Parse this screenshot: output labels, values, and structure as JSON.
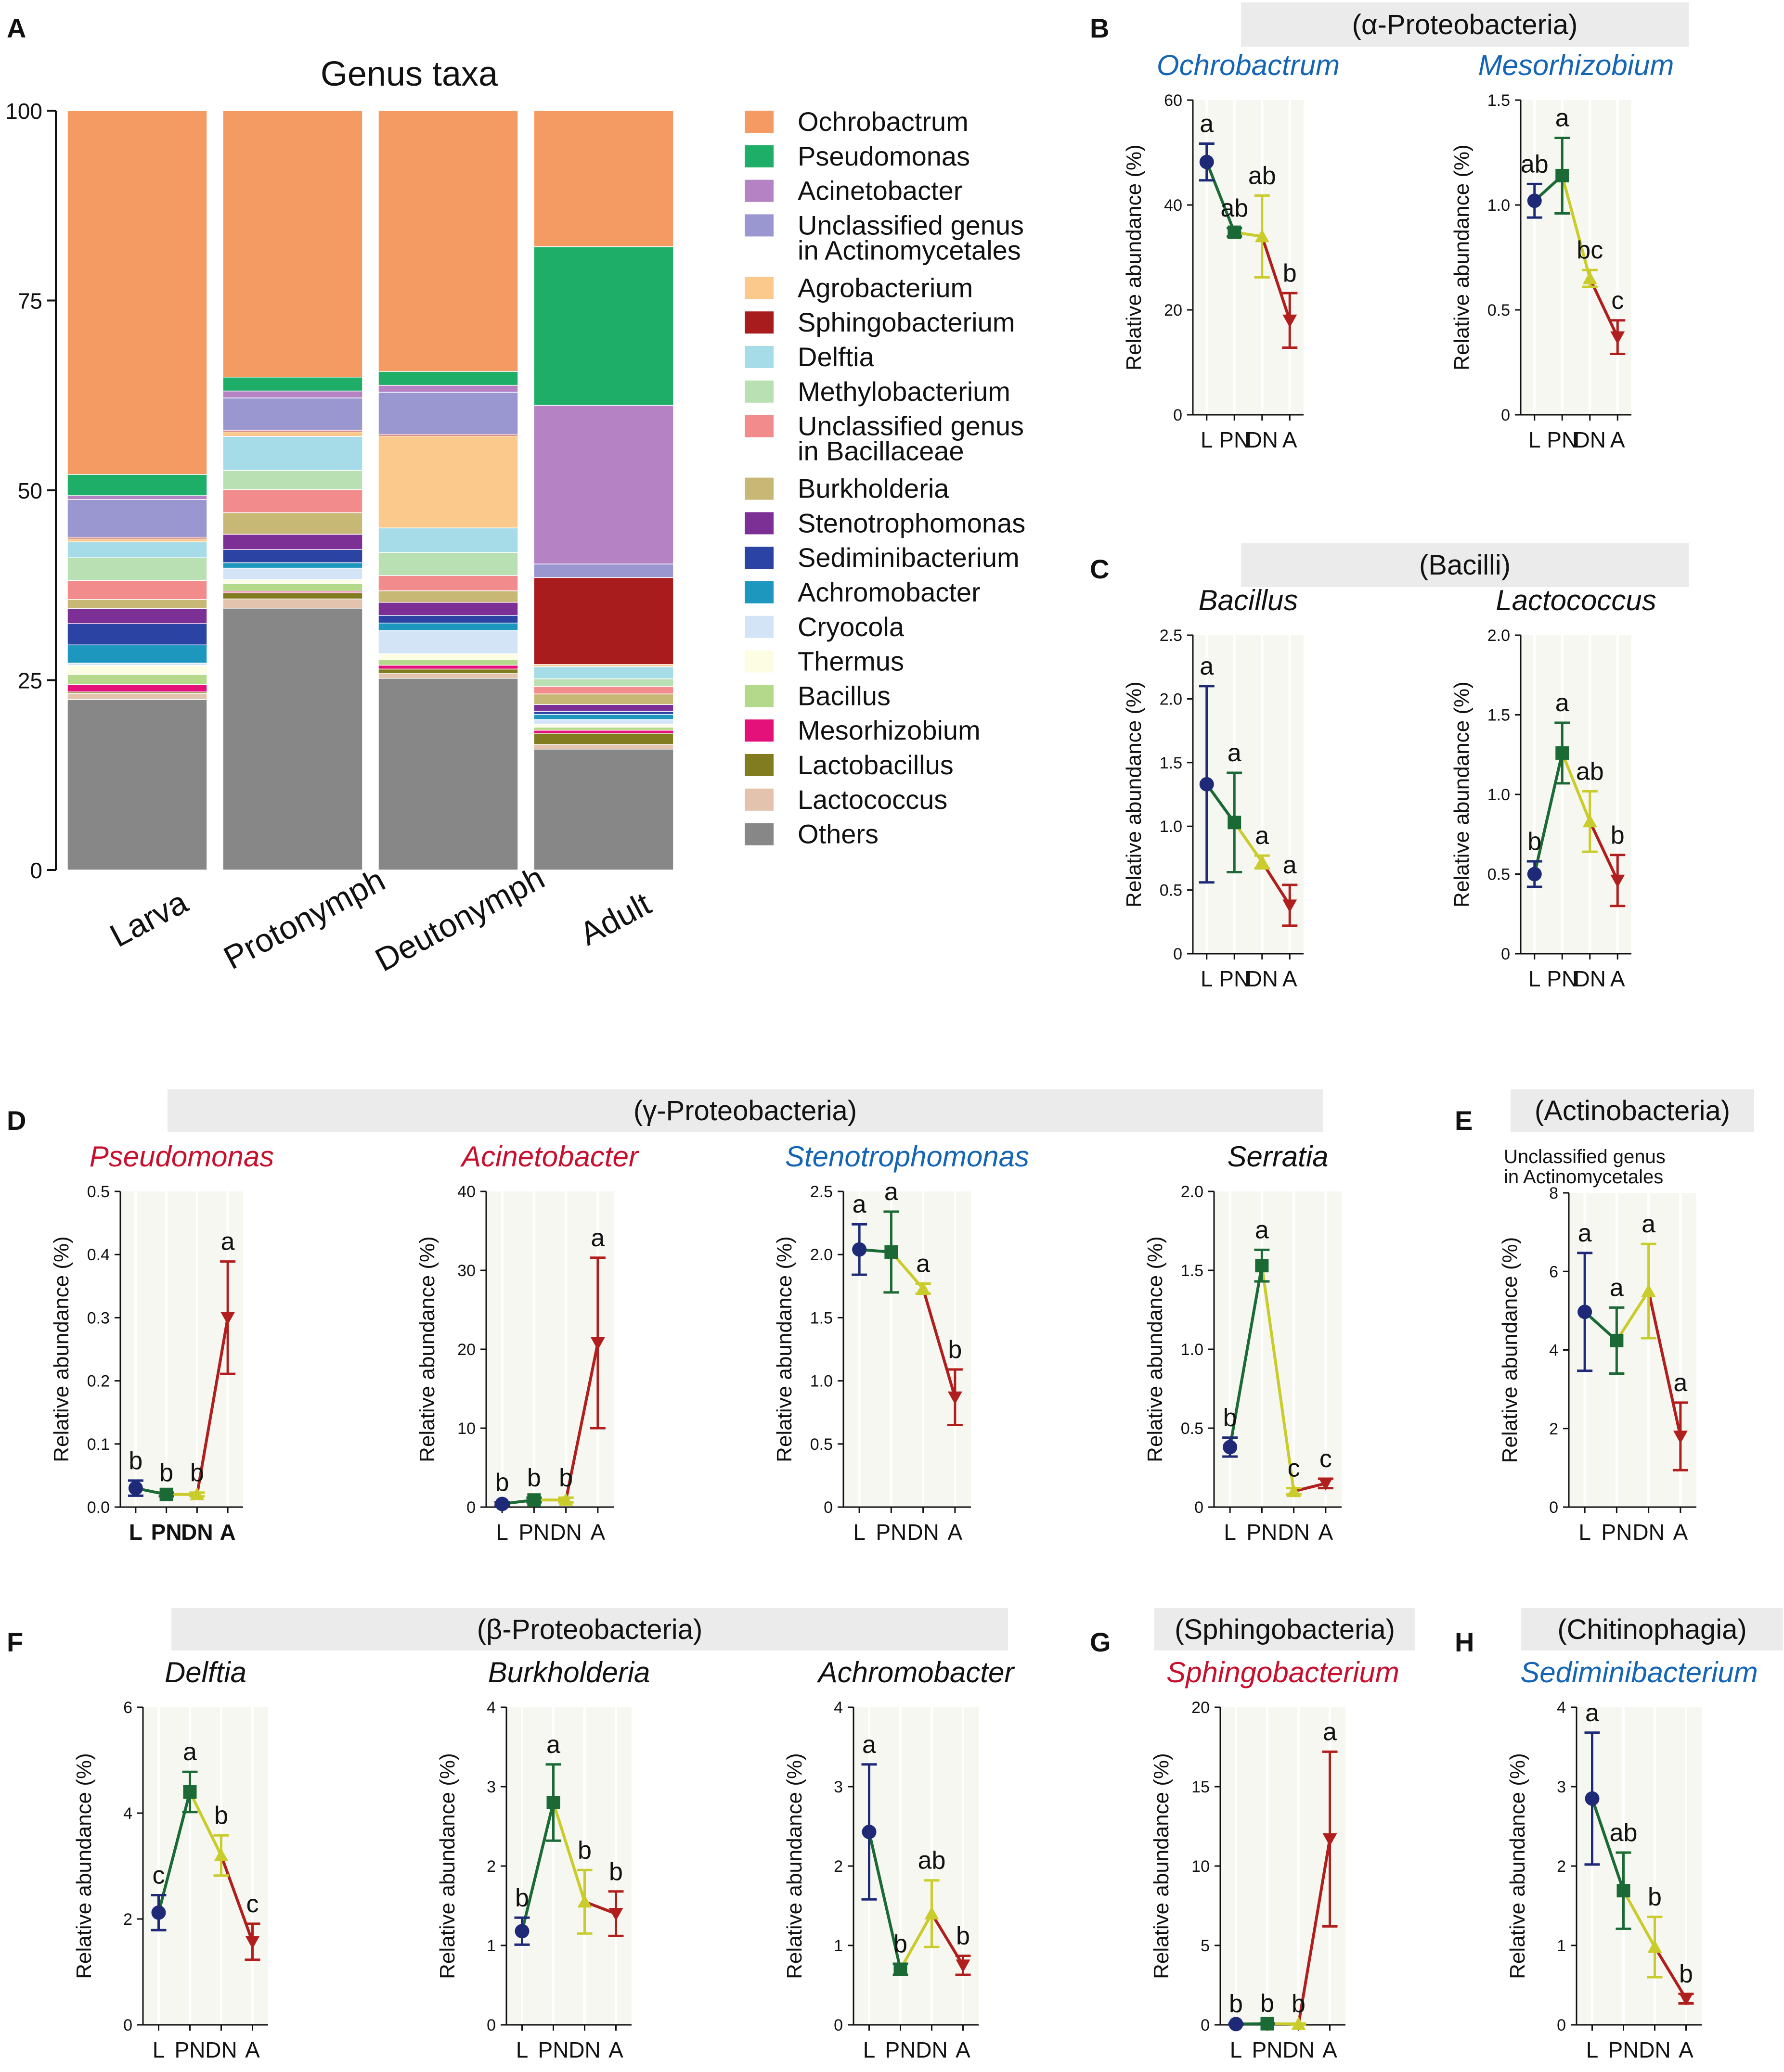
{
  "chart_data": [
    {
      "panel": "A",
      "type": "bar",
      "title": "Genus taxa",
      "categories": [
        "Larva",
        "Protonymph",
        "Deutonymph",
        "Adult"
      ],
      "ylim": [
        0,
        100
      ],
      "yticks": [
        "0",
        "25",
        "50",
        "75",
        "100"
      ],
      "series": [
        {
          "name": "Others",
          "color": "#878787",
          "values": [
            22.5,
            34.0,
            25.0,
            16.0
          ]
        },
        {
          "name": "Lactococcus",
          "color": "#e3c3ad",
          "values": [
            0.8,
            1.2,
            0.6,
            0.6
          ]
        },
        {
          "name": "Lactobacillus",
          "color": "#827c21",
          "values": [
            0.2,
            0.8,
            0.6,
            1.5
          ]
        },
        {
          "name": "Mesorhizobium",
          "color": "#e4117b",
          "values": [
            1.0,
            0.2,
            0.5,
            0.4
          ]
        },
        {
          "name": "Bacillus",
          "color": "#b4d98b",
          "values": [
            1.3,
            1.0,
            0.7,
            0.4
          ]
        },
        {
          "name": "Thermus",
          "color": "#fdfde4",
          "values": [
            1.2,
            0.5,
            0.8,
            0.4
          ]
        },
        {
          "name": "Cryocola",
          "color": "#d4e4f7",
          "values": [
            0.3,
            1.5,
            3.0,
            0.6
          ]
        },
        {
          "name": "Achromobacter",
          "color": "#1e97bf",
          "values": [
            2.4,
            0.7,
            1.0,
            0.7
          ]
        },
        {
          "name": "Sediminibacterium",
          "color": "#2b43a3",
          "values": [
            2.8,
            1.7,
            1.0,
            0.4
          ]
        },
        {
          "name": "Stenotrophomonas",
          "color": "#7c2f95",
          "values": [
            2.0,
            2.0,
            1.7,
            0.9
          ]
        },
        {
          "name": "Burkholderia",
          "color": "#c8b876",
          "values": [
            1.2,
            2.8,
            1.5,
            1.4
          ]
        },
        {
          "name": "Unclassified genus in Bacillaceae",
          "color": "#f28b8b",
          "values": [
            2.5,
            3.0,
            2.0,
            1.0
          ]
        },
        {
          "name": "Methylobacterium",
          "color": "#b9e0b2",
          "values": [
            3.0,
            2.5,
            3.0,
            1.0
          ]
        },
        {
          "name": "Delftia",
          "color": "#a6dbe8",
          "values": [
            2.1,
            4.4,
            3.2,
            1.6
          ]
        },
        {
          "name": "Agrobacterium",
          "color": "#fbc98c",
          "values": [
            0.4,
            0.6,
            12.0,
            0.3
          ]
        },
        {
          "name": "Sphingobacterium",
          "color": "#a81c1e",
          "values": [
            0.2,
            0.2,
            0.2,
            11.5
          ]
        },
        {
          "name": "Unclassified genus in Actinomycetales",
          "color": "#9a96cf",
          "values": [
            5.0,
            4.2,
            5.5,
            1.8
          ]
        },
        {
          "name": "Acinetobacter",
          "color": "#b582c4",
          "values": [
            0.5,
            0.9,
            0.9,
            21.0
          ]
        },
        {
          "name": "Pseudomonas",
          "color": "#1fae68",
          "values": [
            2.8,
            1.8,
            1.8,
            21.0
          ]
        },
        {
          "name": "Ochrobactrum",
          "color": "#f49b63",
          "values": [
            48.0,
            34.6,
            34.0,
            18.0
          ]
        }
      ],
      "legend": [
        "Ochrobactrum",
        "Pseudomonas",
        "Acinetobacter",
        "Unclassified genus|in Actinomycetales",
        "Agrobacterium",
        "Sphingobacterium",
        "Delftia",
        "Methylobacterium",
        "Unclassified genus|in Bacillaceae",
        "Burkholderia",
        "Stenotrophomonas",
        "Sediminibacterium",
        "Achromobacter",
        "Cryocola",
        "Thermus",
        "Bacillus",
        "Mesorhizobium",
        "Lactobacillus",
        "Lactococcus",
        "Others"
      ]
    },
    {
      "panel": "B",
      "type": "line",
      "title": "Ochrobactrum",
      "title_color": "#1565b6",
      "ylabel": "Relative abundance (%)",
      "categories": [
        "L",
        "PN",
        "DN",
        "A"
      ],
      "ylim": [
        0,
        60
      ],
      "yticks": [
        "0",
        "20",
        "40",
        "60"
      ],
      "values": [
        48.2,
        34.8,
        34.0,
        18.0
      ],
      "err": [
        3.5,
        0.8,
        7.8,
        5.2
      ],
      "letters": [
        "a",
        "ab",
        "ab",
        "b"
      ]
    },
    {
      "panel": "B",
      "type": "line",
      "title": "Mesorhizobium",
      "title_color": "#1565b6",
      "ylabel": "Relative abundance (%)",
      "categories": [
        "L",
        "PN",
        "DN",
        "A"
      ],
      "ylim": [
        0,
        1.5
      ],
      "yticks": [
        "0",
        "0.5",
        "1.0",
        "1.5"
      ],
      "values": [
        1.02,
        1.14,
        0.65,
        0.37
      ],
      "err": [
        0.08,
        0.18,
        0.04,
        0.08
      ],
      "letters": [
        "ab",
        "a",
        "bc",
        "c"
      ]
    },
    {
      "panel": "C",
      "type": "line",
      "title": "Bacillus",
      "title_color": "#111111",
      "ylabel": "Relative abundance (%)",
      "categories": [
        "L",
        "PN",
        "DN",
        "A"
      ],
      "ylim": [
        0,
        2.5
      ],
      "yticks": [
        "0",
        "0.5",
        "1.0",
        "1.5",
        "2.0",
        "2.5"
      ],
      "values": [
        1.33,
        1.03,
        0.72,
        0.38
      ],
      "err": [
        0.77,
        0.39,
        0.05,
        0.16
      ],
      "letters": [
        "a",
        "a",
        "a",
        "a"
      ]
    },
    {
      "panel": "C",
      "type": "line",
      "title": "Lactococcus",
      "title_color": "#111111",
      "ylabel": "Relative abundance (%)",
      "categories": [
        "L",
        "PN",
        "DN",
        "A"
      ],
      "ylim": [
        0,
        2.0
      ],
      "yticks": [
        "0",
        "0.5",
        "1.0",
        "1.5",
        "2.0"
      ],
      "values": [
        0.5,
        1.26,
        0.83,
        0.46
      ],
      "err": [
        0.08,
        0.19,
        0.19,
        0.16
      ],
      "letters": [
        "b",
        "a",
        "ab",
        "b"
      ]
    },
    {
      "panel": "D",
      "type": "line",
      "title": "Pseudomonas",
      "title_color": "#c8102e",
      "ylabel": "Relative abundance (%)",
      "categories": [
        "L",
        "PN",
        "DN",
        "A"
      ],
      "bold_ticks": true,
      "ylim": [
        0,
        0.5
      ],
      "yticks": [
        "0.0",
        "0.1",
        "0.2",
        "0.3",
        "0.4",
        "0.5"
      ],
      "values": [
        0.03,
        0.02,
        0.02,
        0.3
      ],
      "err": [
        0.012,
        0.003,
        0.003,
        0.089
      ],
      "letters": [
        "b",
        "b",
        "b",
        "a"
      ]
    },
    {
      "panel": "D",
      "type": "line",
      "title": "Acinetobacter",
      "title_color": "#c8102e",
      "ylabel": "Relative abundance (%)",
      "categories": [
        "L",
        "PN",
        "DN",
        "A"
      ],
      "ylim": [
        0,
        40
      ],
      "yticks": [
        "0",
        "10",
        "20",
        "30",
        "40"
      ],
      "values": [
        0.4,
        0.9,
        0.9,
        20.8
      ],
      "err": [
        0.2,
        0.3,
        0.3,
        10.8
      ],
      "letters": [
        "b",
        "b",
        "b",
        "a"
      ]
    },
    {
      "panel": "D",
      "type": "line",
      "title": "Stenotrophomonas",
      "title_color": "#1565b6",
      "ylabel": "Relative abundance (%)",
      "categories": [
        "L",
        "PN",
        "DN",
        "A"
      ],
      "ylim": [
        0,
        2.5
      ],
      "yticks": [
        "0",
        "0.5",
        "1.0",
        "1.5",
        "2.0",
        "2.5"
      ],
      "values": [
        2.04,
        2.02,
        1.73,
        0.87
      ],
      "err": [
        0.2,
        0.32,
        0.04,
        0.22
      ],
      "letters": [
        "a",
        "a",
        "a",
        "b"
      ]
    },
    {
      "panel": "D",
      "type": "line",
      "title": "Serratia",
      "title_color": "#111111",
      "ylabel": "Relative abundance (%)",
      "categories": [
        "L",
        "PN",
        "DN",
        "A"
      ],
      "ylim": [
        0,
        2.0
      ],
      "yticks": [
        "0",
        "0.5",
        "1.0",
        "1.5",
        "2.0"
      ],
      "values": [
        0.38,
        1.53,
        0.1,
        0.15
      ],
      "err": [
        0.06,
        0.1,
        0.02,
        0.03
      ],
      "letters": [
        "b",
        "a",
        "c",
        "c"
      ]
    },
    {
      "panel": "E",
      "type": "line",
      "title": "Unclassified genus|in Actinomycetales",
      "title_color": "#111111",
      "small_title": true,
      "ylabel": "Relative abundance (%)",
      "categories": [
        "L",
        "PN",
        "DN",
        "A"
      ],
      "ylim": [
        0,
        8
      ],
      "yticks": [
        "0",
        "2",
        "4",
        "6",
        "8"
      ],
      "values": [
        4.97,
        4.24,
        5.5,
        1.8
      ],
      "err": [
        1.5,
        0.84,
        1.2,
        0.86
      ],
      "letters": [
        "a",
        "a",
        "a",
        "a"
      ]
    },
    {
      "panel": "F",
      "type": "line",
      "title": "Delftia",
      "title_color": "#111111",
      "ylabel": "Relative abundance (%)",
      "categories": [
        "L",
        "PN",
        "DN",
        "A"
      ],
      "ylim": [
        0,
        6
      ],
      "yticks": [
        "0",
        "2",
        "4",
        "6"
      ],
      "values": [
        2.12,
        4.4,
        3.2,
        1.57
      ],
      "err": [
        0.33,
        0.38,
        0.38,
        0.34
      ],
      "letters": [
        "c",
        "a",
        "b",
        "c"
      ]
    },
    {
      "panel": "F",
      "type": "line",
      "title": "Burkholderia",
      "title_color": "#111111",
      "ylabel": "Relative abundance (%)",
      "categories": [
        "L",
        "PN",
        "DN",
        "A"
      ],
      "ylim": [
        0,
        4
      ],
      "yticks": [
        "0",
        "1",
        "2",
        "3",
        "4"
      ],
      "values": [
        1.18,
        2.8,
        1.55,
        1.4
      ],
      "err": [
        0.17,
        0.48,
        0.4,
        0.28
      ],
      "letters": [
        "b",
        "a",
        "b",
        "b"
      ]
    },
    {
      "panel": "F",
      "type": "line",
      "title": "Achromobacter",
      "title_color": "#111111",
      "ylabel": "Relative abundance (%)",
      "categories": [
        "L",
        "PN",
        "DN",
        "A"
      ],
      "ylim": [
        0,
        4
      ],
      "yticks": [
        "0",
        "1",
        "2",
        "3",
        "4"
      ],
      "values": [
        2.43,
        0.7,
        1.4,
        0.75
      ],
      "err": [
        0.85,
        0.07,
        0.42,
        0.12
      ],
      "letters": [
        "a",
        "b",
        "ab",
        "b"
      ]
    },
    {
      "panel": "G",
      "type": "line",
      "title": "Sphingobacterium",
      "title_color": "#c8102e",
      "ylabel": "Relative abundance (%)",
      "categories": [
        "L",
        "PN",
        "DN",
        "A"
      ],
      "ylim": [
        0,
        20
      ],
      "yticks": [
        "0",
        "5",
        "10",
        "15",
        "20"
      ],
      "values": [
        0.05,
        0.07,
        0.05,
        11.7
      ],
      "err": [
        0.03,
        0.03,
        0.03,
        5.5
      ],
      "letters": [
        "b",
        "b",
        "b",
        "a"
      ]
    },
    {
      "panel": "H",
      "type": "line",
      "title": "Sediminibacterium",
      "title_color": "#1565b6",
      "ylabel": "Relative abundance (%)",
      "categories": [
        "L",
        "PN",
        "DN",
        "A"
      ],
      "ylim": [
        0,
        4
      ],
      "yticks": [
        "0",
        "1",
        "2",
        "3",
        "4"
      ],
      "values": [
        2.85,
        1.69,
        0.98,
        0.33
      ],
      "err": [
        0.83,
        0.48,
        0.38,
        0.06
      ],
      "letters": [
        "a",
        "ab",
        "b",
        "b"
      ]
    }
  ],
  "panel_letters": [
    "A",
    "B",
    "C",
    "D",
    "E",
    "F",
    "G",
    "H"
  ],
  "group_headers": [
    "(α-Proteobacteria)",
    "(Bacilli)",
    "(γ-Proteobacteria)",
    "(Actinobacteria)",
    "(β-Proteobacteria)",
    "(Sphingobacteria)",
    "(Chitinophagia)"
  ],
  "colors": {
    "L": "#1e2a78",
    "PN": "#1b6a35",
    "DN": "#c9cc2a",
    "A": "#b11e1e",
    "plot_bg": "#f6f7f0",
    "header_bg": "#ebebeb"
  }
}
